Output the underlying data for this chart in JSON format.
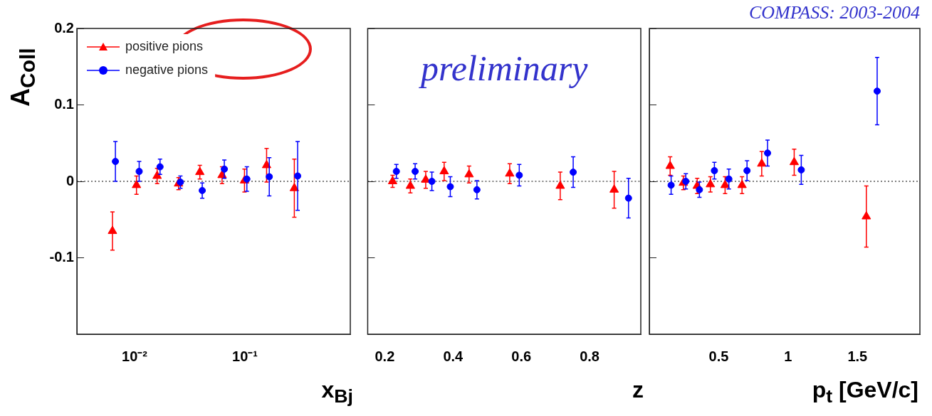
{
  "chart_data": [
    {
      "type": "scatter",
      "xlabel": "x$_{Bj}$",
      "ylabel": "A$_{Coll}$",
      "log": "x",
      "xlim": [
        0.003,
        0.9
      ],
      "xticks": [
        {
          "value": 0.01,
          "label": "10⁻²"
        },
        {
          "value": 0.1,
          "label": "10⁻¹"
        }
      ],
      "ylim": [
        -0.2,
        0.2
      ],
      "yticks": [
        -0.1,
        0,
        0.1,
        0.2
      ],
      "legend": "top left",
      "ref_lines": [
        {
          "axis": "y",
          "value": 0,
          "color": "#000000",
          "line_style": "dotted"
        }
      ],
      "series": [
        {
          "name": "positive pions",
          "color": "#ff0000",
          "marker": "triangle",
          "x": [
            0.0063,
            0.0104,
            0.016,
            0.025,
            0.039,
            0.062,
            0.099,
            0.157,
            0.28
          ],
          "values": [
            -0.065,
            -0.005,
            0.007,
            -0.003,
            0.012,
            0.008,
            0.001,
            0.021,
            -0.009
          ],
          "errors": [
            0.025,
            0.012,
            0.01,
            0.008,
            0.009,
            0.011,
            0.015,
            0.022,
            0.038
          ]
        },
        {
          "name": "negative pions",
          "color": "#0000ff",
          "marker": "circle",
          "x": [
            0.0067,
            0.011,
            0.017,
            0.026,
            0.041,
            0.065,
            0.104,
            0.166,
            0.3
          ],
          "values": [
            0.026,
            0.013,
            0.019,
            -0.001,
            -0.012,
            0.016,
            0.003,
            0.006,
            0.007
          ],
          "errors": [
            0.026,
            0.013,
            0.01,
            0.008,
            0.01,
            0.012,
            0.016,
            0.025,
            0.045
          ]
        }
      ]
    },
    {
      "type": "scatter",
      "xlabel": "z",
      "annotations": [
        "preliminary"
      ],
      "xlim": [
        0.15,
        0.95
      ],
      "xticks": [
        0.2,
        0.4,
        0.6,
        0.8
      ],
      "ylim": [
        -0.2,
        0.2
      ],
      "yticks": [
        -0.1,
        0,
        0.1,
        0.2
      ],
      "tick_labels": "x",
      "ref_lines": [
        {
          "axis": "y",
          "value": 0,
          "color": "#000000",
          "line_style": "dotted"
        }
      ],
      "series": [
        {
          "color": "#ff0000",
          "marker": "triangle",
          "x": [
            0.223,
            0.275,
            0.32,
            0.374,
            0.447,
            0.566,
            0.714,
            0.872
          ],
          "values": [
            0,
            -0.006,
            0.002,
            0.013,
            0.009,
            0.01,
            -0.006,
            -0.011
          ],
          "errors": [
            0.008,
            0.009,
            0.011,
            0.012,
            0.011,
            0.013,
            0.018,
            0.024
          ]
        },
        {
          "color": "#0000ff",
          "marker": "circle",
          "x": [
            0.234,
            0.289,
            0.338,
            0.392,
            0.47,
            0.594,
            0.752,
            0.914
          ],
          "values": [
            0.013,
            0.013,
            0,
            -0.007,
            -0.011,
            0.008,
            0.012,
            -0.022
          ],
          "errors": [
            0.009,
            0.01,
            0.012,
            0.013,
            0.012,
            0.014,
            0.02,
            0.026
          ]
        }
      ]
    },
    {
      "type": "scatter",
      "xlabel": "p$_{t}$ [GeV/c]",
      "annotations": [
        "COMPASS: 2003-2004"
      ],
      "xlim": [
        0,
        1.95
      ],
      "xticks": [
        0.5,
        1,
        1.5
      ],
      "ylim": [
        -0.2,
        0.2
      ],
      "yticks": [
        -0.1,
        0,
        0.1,
        0.2
      ],
      "tick_labels": "x",
      "ref_lines": [
        {
          "axis": "y",
          "value": 0,
          "color": "#000000",
          "line_style": "dotted"
        }
      ],
      "series": [
        {
          "color": "#ff0000",
          "marker": "triangle",
          "x": [
            0.15,
            0.245,
            0.345,
            0.44,
            0.546,
            0.668,
            0.81,
            1.044,
            1.564
          ],
          "values": [
            0.02,
            -0.002,
            -0.006,
            -0.004,
            -0.005,
            -0.005,
            0.023,
            0.025,
            -0.046
          ],
          "errors": [
            0.012,
            0.009,
            0.01,
            0.01,
            0.011,
            0.011,
            0.016,
            0.017,
            0.04
          ]
        },
        {
          "color": "#0000ff",
          "marker": "circle",
          "x": [
            0.157,
            0.263,
            0.361,
            0.469,
            0.573,
            0.704,
            0.852,
            1.095,
            1.642
          ],
          "values": [
            -0.005,
            0,
            -0.011,
            0.014,
            0.003,
            0.014,
            0.037,
            0.015,
            0.118
          ],
          "errors": [
            0.012,
            0.01,
            0.01,
            0.011,
            0.013,
            0.013,
            0.017,
            0.019,
            0.044
          ]
        }
      ]
    }
  ]
}
